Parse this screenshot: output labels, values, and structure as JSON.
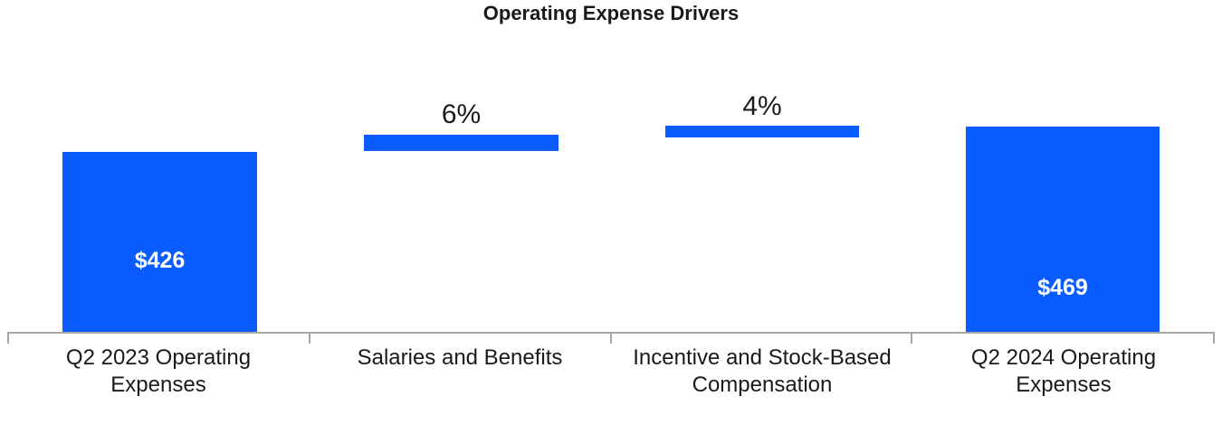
{
  "chart_data": {
    "type": "bar",
    "subtype": "waterfall",
    "title": "Operating Expense Drivers",
    "legend": "none",
    "gridlines": false,
    "y_axis": "hidden",
    "bar_color": "#0B5CFF",
    "axis_line_color": "#A6A6A6",
    "text_color": "#1A1A1A",
    "inside_value_label_color": "#FFFFFF",
    "categories": [
      "Q2 2023 Operating Expenses",
      "Salaries and Benefits",
      "Incentive and Stock-Based Compensation",
      "Q2 2024 Operating Expenses"
    ],
    "bars": [
      {
        "category": "Q2 2023 Operating Expenses",
        "category_lines": [
          "Q2 2023 Operating",
          "Expenses"
        ],
        "role": "total",
        "value": 426,
        "value_label": "$426",
        "value_label_position": "inside"
      },
      {
        "category": "Salaries and Benefits",
        "category_lines": [
          "Salaries and Benefits",
          ""
        ],
        "role": "increase",
        "delta_percent": 6,
        "start": 426,
        "end": 452,
        "value_label": "6%",
        "value_label_position": "above"
      },
      {
        "category": "Incentive and Stock-Based Compensation",
        "category_lines": [
          "Incentive and Stock-Based",
          "Compensation"
        ],
        "role": "increase",
        "delta_percent": 4,
        "start": 452,
        "end": 469,
        "value_label": "4%",
        "value_label_position": "above"
      },
      {
        "category": "Q2 2024 Operating Expenses",
        "category_lines": [
          "Q2 2024 Operating",
          "Expenses"
        ],
        "role": "total",
        "value": 469,
        "value_label": "$469",
        "value_label_position": "inside"
      }
    ]
  }
}
